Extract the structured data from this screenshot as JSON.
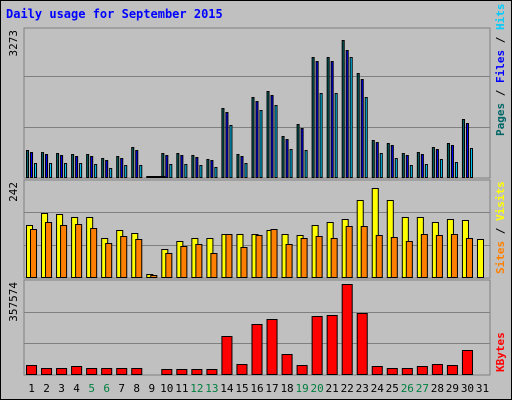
{
  "chart_data": [
    {
      "type": "bar",
      "title": "Daily usage for September 2015",
      "categories": [
        "1",
        "2",
        "3",
        "4",
        "5",
        "6",
        "7",
        "8",
        "9",
        "10",
        "11",
        "12",
        "13",
        "14",
        "15",
        "16",
        "17",
        "18",
        "19",
        "20",
        "21",
        "22",
        "23",
        "24",
        "25",
        "26",
        "27",
        "28",
        "29",
        "30",
        "31"
      ],
      "weekend_days": [
        "5",
        "6",
        "12",
        "13",
        "19",
        "20",
        "26",
        "27"
      ],
      "ymax_label": "3273",
      "ylim": [
        0,
        3273
      ],
      "grid": true,
      "series": [
        {
          "name": "Pages",
          "color": "#006666",
          "values": [
            630,
            590,
            570,
            550,
            540,
            450,
            500,
            700,
            0,
            560,
            560,
            520,
            440,
            1600,
            540,
            1850,
            1980,
            950,
            1220,
            2750,
            2750,
            3130,
            2380,
            870,
            800,
            570,
            600,
            700,
            800,
            1350,
            0
          ]
        },
        {
          "name": "Files",
          "color": "#0000ff",
          "values": [
            580,
            540,
            530,
            510,
            490,
            410,
            460,
            630,
            0,
            520,
            520,
            480,
            400,
            1500,
            490,
            1750,
            1880,
            880,
            1140,
            2650,
            2650,
            2900,
            2260,
            810,
            740,
            530,
            550,
            660,
            750,
            1250,
            0
          ]
        },
        {
          "name": "Hits",
          "color": "#00ccff",
          "values": [
            340,
            330,
            330,
            330,
            320,
            230,
            300,
            300,
            0,
            310,
            310,
            300,
            260,
            1200,
            340,
            1550,
            1650,
            650,
            630,
            1940,
            1940,
            2750,
            1850,
            560,
            460,
            300,
            320,
            440,
            370,
            690,
            0
          ]
        }
      ]
    },
    {
      "type": "bar",
      "ymax_label": "242",
      "ylim": [
        0,
        242
      ],
      "grid": true,
      "series": [
        {
          "name": "Visits",
          "color": "#ffff00",
          "values": [
            140,
            170,
            168,
            160,
            160,
            106,
            126,
            118,
            10,
            76,
            97,
            106,
            106,
            117,
            117,
            117,
            127,
            117,
            112,
            140,
            146,
            156,
            205,
            238,
            204,
            160,
            160,
            147,
            155,
            152,
            102
          ]
        },
        {
          "name": "Sites",
          "color": "#ff8000",
          "values": [
            129,
            146,
            140,
            143,
            131,
            91,
            110,
            103,
            8,
            66,
            83,
            90,
            67,
            117,
            82,
            112,
            130,
            90,
            105,
            110,
            105,
            137,
            138,
            112,
            107,
            98,
            117,
            112,
            116,
            104,
            0
          ]
        }
      ]
    },
    {
      "type": "bar",
      "ymax_label": "357574",
      "ylim": [
        0,
        357574
      ],
      "grid": true,
      "series": [
        {
          "name": "KBytes",
          "color": "#ff0000",
          "values": [
            40000,
            30000,
            30000,
            35000,
            30000,
            30000,
            30000,
            30000,
            0,
            24000,
            24000,
            24000,
            24000,
            157000,
            45000,
            205000,
            225000,
            85000,
            40000,
            238000,
            242000,
            368000,
            250000,
            38000,
            30000,
            30000,
            38000,
            43000,
            40000,
            100000,
            0
          ]
        }
      ]
    }
  ]
}
